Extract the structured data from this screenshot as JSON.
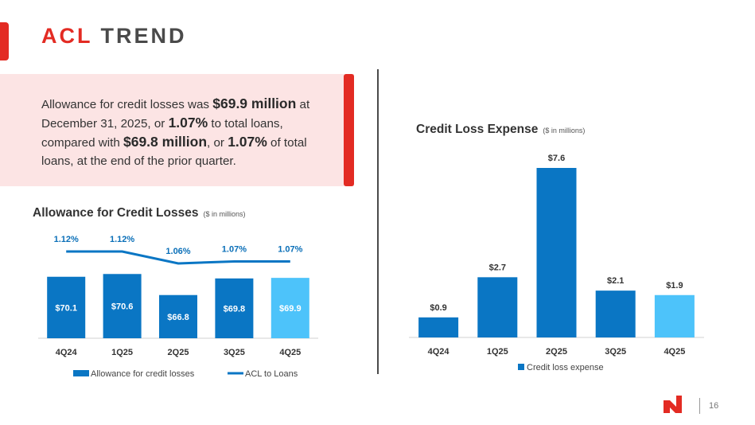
{
  "slide": {
    "title_part1": "ACL",
    "title_part2": "TREND",
    "page_number": "16"
  },
  "callout": {
    "t1": "Allowance for credit losses was ",
    "b1": "$69.9 million",
    "t2": " at December 31, 2025, or ",
    "b2": "1.07%",
    "t3": " to total loans, compared with ",
    "b3": "$69.8 million",
    "t4": ", or ",
    "b4": "1.07%",
    "t5": " of total loans, at the end of the prior quarter."
  },
  "colors": {
    "brand_red": "#e32b23",
    "bar_blue": "#0a76c4",
    "bar_highlight": "#4dc3fa",
    "line_blue": "#0a76c4",
    "label_blue": "#0a6fb8"
  },
  "chart_data": [
    {
      "type": "bar",
      "title": "Allowance for Credit Losses",
      "subtitle": "($ in millions)",
      "categories": [
        "4Q24",
        "1Q25",
        "2Q25",
        "3Q25",
        "4Q25"
      ],
      "series": [
        {
          "name": "Allowance for credit losses",
          "type": "bar",
          "values": [
            70.1,
            70.6,
            66.8,
            69.8,
            69.9
          ],
          "labels": [
            "$70.1",
            "$70.6",
            "$66.8",
            "$69.8",
            "$69.9"
          ],
          "highlight_last": true
        },
        {
          "name": "ACL to Loans",
          "type": "line",
          "values": [
            1.12,
            1.12,
            1.06,
            1.07,
            1.07
          ],
          "labels": [
            "1.12%",
            "1.12%",
            "1.06%",
            "1.07%",
            "1.07%"
          ]
        }
      ],
      "legend_position": "bottom"
    },
    {
      "type": "bar",
      "title": "Credit Loss Expense",
      "subtitle": "($ in millions)",
      "categories": [
        "4Q24",
        "1Q25",
        "2Q25",
        "3Q25",
        "4Q25"
      ],
      "series": [
        {
          "name": "Credit loss expense",
          "values": [
            0.9,
            2.7,
            7.6,
            2.1,
            1.9
          ],
          "labels": [
            "$0.9",
            "$2.7",
            "$7.6",
            "$2.1",
            "$1.9"
          ],
          "highlight_last": true
        }
      ],
      "legend_position": "bottom"
    }
  ]
}
